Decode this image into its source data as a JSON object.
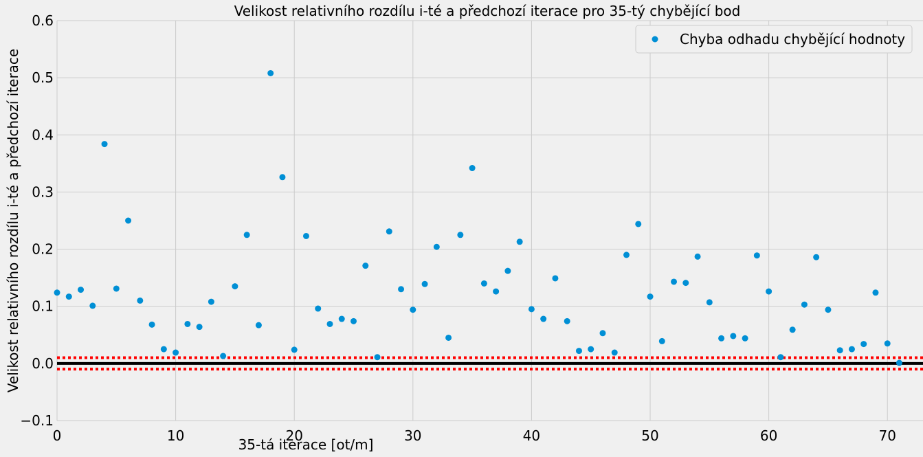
{
  "chart_data": {
    "type": "scatter",
    "title": "Velikost relativního rozdílu i-té a předchozí iterace pro 35-tý chybějící bod",
    "xlabel": "35-tá iterace [ot/m]",
    "ylabel": "Velikost relativního rozdílu i-té a předchozí iterace",
    "xlim": [
      0,
      73
    ],
    "ylim": [
      -0.1,
      0.6
    ],
    "x_ticks": [
      0,
      10,
      20,
      30,
      40,
      50,
      60,
      70
    ],
    "x_tick_labels": [
      "0",
      "10",
      "20",
      "30",
      "40",
      "50",
      "60",
      "70"
    ],
    "y_ticks": [
      -0.1,
      0.0,
      0.1,
      0.2,
      0.3,
      0.4,
      0.5,
      0.6
    ],
    "y_tick_labels": [
      "−0.1",
      "0.0",
      "0.1",
      "0.2",
      "0.3",
      "0.4",
      "0.5",
      "0.6"
    ],
    "grid": true,
    "legend_position": "top-right",
    "series": [
      {
        "name": "Chyba odhadu chybějící hodnoty",
        "color": "#008fd5",
        "x": [
          0,
          1,
          2,
          3,
          4,
          5,
          6,
          7,
          8,
          9,
          10,
          11,
          12,
          13,
          14,
          15,
          16,
          17,
          18,
          19,
          20,
          21,
          22,
          23,
          24,
          25,
          26,
          27,
          28,
          29,
          30,
          31,
          32,
          33,
          34,
          35,
          36,
          37,
          38,
          39,
          40,
          41,
          42,
          43,
          44,
          45,
          46,
          47,
          48,
          49,
          50,
          51,
          52,
          53,
          54,
          55,
          56,
          57,
          58,
          59,
          60,
          61,
          62,
          63,
          64,
          65,
          66,
          67,
          68,
          69,
          70,
          71
        ],
        "y": [
          0.124,
          0.117,
          0.129,
          0.101,
          0.384,
          0.131,
          0.25,
          0.11,
          0.068,
          0.025,
          0.019,
          0.069,
          0.064,
          0.108,
          0.013,
          0.135,
          0.225,
          0.067,
          0.508,
          0.326,
          0.024,
          0.223,
          0.096,
          0.069,
          0.078,
          0.074,
          0.171,
          0.011,
          0.231,
          0.13,
          0.094,
          0.139,
          0.204,
          0.045,
          0.225,
          0.342,
          0.14,
          0.126,
          0.162,
          0.213,
          0.095,
          0.078,
          0.149,
          0.074,
          0.022,
          0.025,
          0.053,
          0.019,
          0.19,
          0.244,
          0.117,
          0.039,
          0.143,
          0.141,
          0.187,
          0.107,
          0.044,
          0.048,
          0.044,
          0.189,
          0.126,
          0.011,
          0.059,
          0.103,
          0.186,
          0.094,
          0.023,
          0.025,
          0.034,
          0.124,
          0.035,
          0.001
        ]
      }
    ],
    "reference_lines": [
      {
        "y": 0.0,
        "color": "#000000",
        "style": "solid"
      },
      {
        "y": 0.01,
        "color": "#ff0000",
        "style": "dotted"
      },
      {
        "y": -0.01,
        "color": "#ff0000",
        "style": "dotted"
      }
    ]
  }
}
